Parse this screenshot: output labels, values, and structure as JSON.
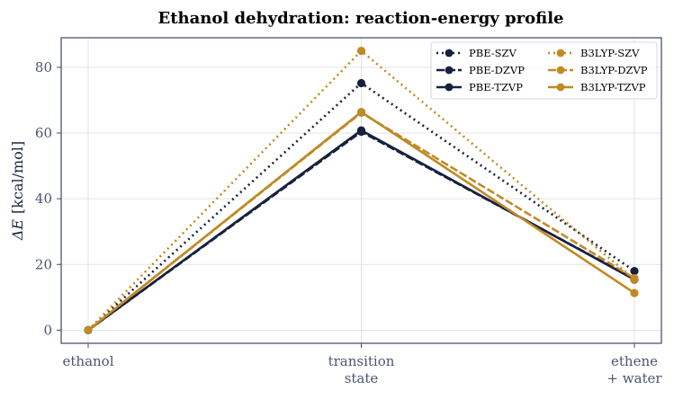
{
  "chart_data": {
    "type": "line",
    "title": "Ethanol dehydration: reaction-energy profile",
    "xlabel": "",
    "ylabel_prefix": "ΔE",
    "ylabel_unit": "[kcal/mol]",
    "categories": [
      [
        "ethanol"
      ],
      [
        "transition",
        "state"
      ],
      [
        "ethene",
        "+ water"
      ]
    ],
    "ylim": [
      -4,
      89
    ],
    "yticks": [
      0,
      20,
      40,
      60,
      80
    ],
    "grid": true,
    "legend_position": "top-right",
    "series": [
      {
        "name": "PBE-SZV",
        "values": [
          0,
          75.2,
          18.0
        ],
        "color": "#16213e",
        "dash": "dotted"
      },
      {
        "name": "PBE-DZVP",
        "values": [
          0,
          60.4,
          15.6
        ],
        "color": "#16213e",
        "dash": "dashed"
      },
      {
        "name": "PBE-TZVP",
        "values": [
          0,
          60.8,
          15.4
        ],
        "color": "#16213e",
        "dash": "solid"
      },
      {
        "name": "B3LYP-SZV",
        "values": [
          0,
          85.0,
          15.5
        ],
        "color": "#c08a25",
        "dash": "dotted"
      },
      {
        "name": "B3LYP-DZVP",
        "values": [
          0,
          66.2,
          15.8
        ],
        "color": "#c08a25",
        "dash": "dashed"
      },
      {
        "name": "B3LYP-TZVP",
        "values": [
          0,
          66.4,
          11.3
        ],
        "color": "#c08a25",
        "dash": "solid"
      }
    ],
    "legend_order": [
      0,
      3,
      1,
      4,
      2,
      5
    ]
  }
}
